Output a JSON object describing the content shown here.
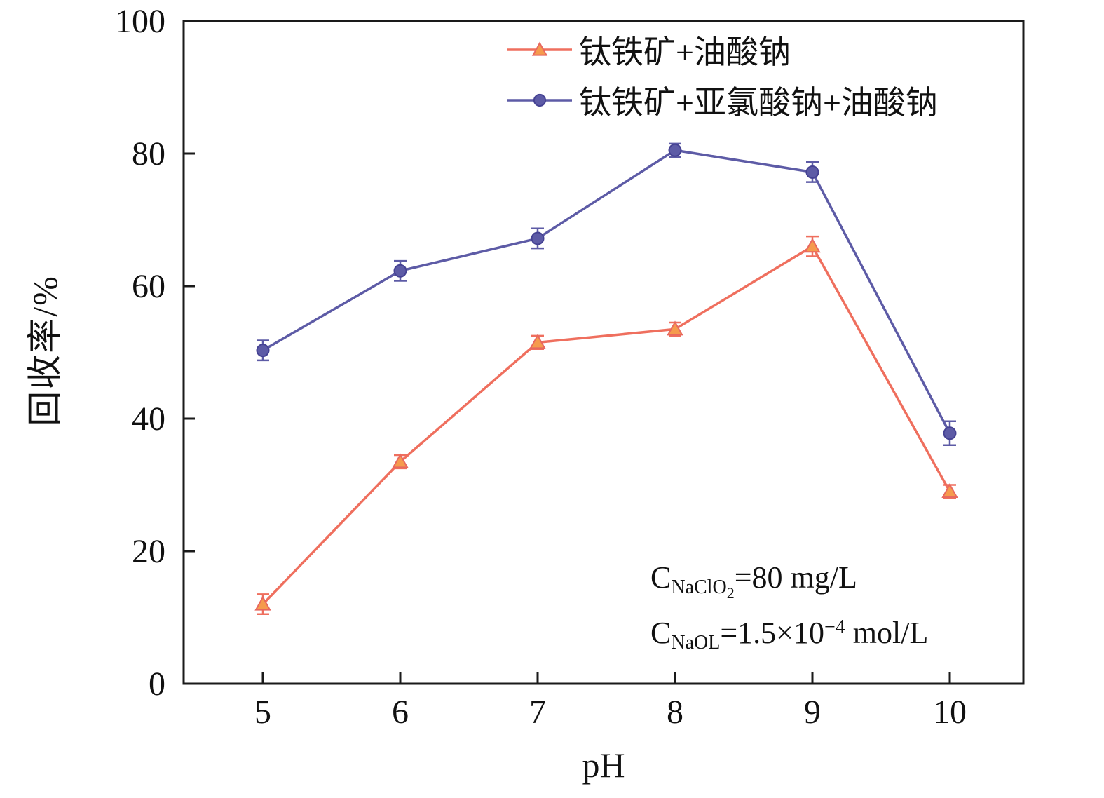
{
  "chart_data": {
    "type": "line",
    "title": "",
    "xlabel": "pH",
    "ylabel": "回收率/%",
    "x": [
      5,
      6,
      7,
      8,
      9,
      10
    ],
    "ylim": [
      0,
      100
    ],
    "yticks": [
      0,
      20,
      40,
      60,
      80,
      100
    ],
    "grid": false,
    "legend_position": "top-center-inside",
    "axis_color": "#1a1a1a",
    "series": [
      {
        "name": "钛铁矿+油酸钠",
        "marker": "triangle",
        "line_color": "#ef6f5e",
        "marker_fill": "#f59b4d",
        "marker_edge": "#e8685f",
        "values": [
          12,
          33.5,
          51.5,
          53.5,
          66,
          29
        ],
        "errors": [
          1.5,
          1,
          1,
          1,
          1.5,
          1
        ]
      },
      {
        "name": "钛铁矿+亚氯酸钠+油酸钠",
        "marker": "circle",
        "line_color": "#5d5ba6",
        "marker_fill": "#5d5ba6",
        "marker_edge": "#454293",
        "values": [
          50.3,
          62.3,
          67.2,
          80.5,
          77.2,
          37.8
        ],
        "errors": [
          1.5,
          1.5,
          1.5,
          1,
          1.5,
          1.8
        ]
      }
    ],
    "annotations": {
      "line1": {
        "c": "C",
        "sub": "NaClO",
        "sub2": "2",
        "rest": "=80 mg/L"
      },
      "line2": {
        "c": "C",
        "sub": "NaOL",
        "rest": "=1.5×10",
        "sup": "−4",
        "unit": " mol/L"
      }
    }
  }
}
